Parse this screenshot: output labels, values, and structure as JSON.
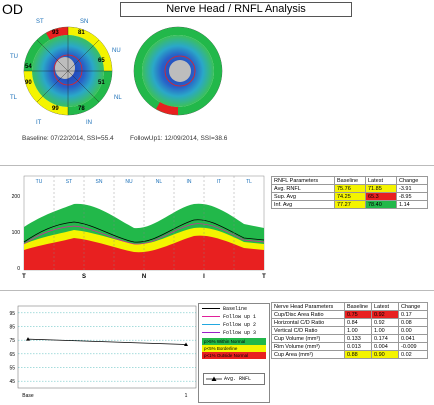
{
  "header": {
    "eye": "OD",
    "title": "Nerve Head / RNFL Analysis"
  },
  "maps": {
    "labels": [
      "ST",
      "SN",
      "TU",
      "NU",
      "TL",
      "NL",
      "IT",
      "IN"
    ],
    "left_values": [
      "93",
      "81",
      "54",
      "65",
      "90",
      "51",
      "99",
      "78"
    ],
    "baseline_caption": "Baseline: 07/22/2014, SSI=55.4",
    "followup_caption": "FollowUp1: 12/09/2014, SSI=38.6"
  },
  "rnfl_chart": {
    "segments": [
      "TU",
      "ST",
      "SN",
      "NU",
      "NL",
      "IN",
      "IT",
      "TL"
    ],
    "yticks": [
      "200",
      "100",
      "0"
    ],
    "xticks": [
      "T",
      "S",
      "N",
      "I",
      "T"
    ]
  },
  "rnfl_table": {
    "headers": [
      "RNFL Parameters",
      "Baseline",
      "Latest",
      "Change"
    ],
    "rows": [
      {
        "label": "Avg. RNFL",
        "baseline": "75.76",
        "latest": "71.85",
        "change": "-3.91",
        "bcolor": "#f4f400",
        "lcolor": "#f4f400"
      },
      {
        "label": "Sup. Avg",
        "baseline": "74.25",
        "latest": "65.3",
        "change": "-8.95",
        "bcolor": "#f4f400",
        "lcolor": "#e82020"
      },
      {
        "label": "Inf. Avg",
        "baseline": "77.27",
        "latest": "78.40",
        "change": "1.14",
        "bcolor": "#f4f400",
        "lcolor": "#22b84a"
      }
    ]
  },
  "trend_chart": {
    "yticks": [
      "95",
      "85",
      "75",
      "65",
      "55",
      "45"
    ],
    "xticks": [
      "Base",
      "1"
    ],
    "chart_data": {
      "type": "line",
      "x": [
        "Base",
        "1"
      ],
      "series": [
        {
          "name": "Avg. RNFL",
          "values": [
            75.76,
            71.85
          ]
        }
      ],
      "ylim": [
        40,
        100
      ]
    }
  },
  "legend": {
    "items": [
      {
        "label": "Baseline",
        "color": "#000000"
      },
      {
        "label": "Follow up 1",
        "color": "#e0209a"
      },
      {
        "label": "Follow up 2",
        "color": "#22a8e0"
      },
      {
        "label": "Follow up 3",
        "color": "#9a20c8"
      }
    ],
    "norm": [
      {
        "label": "p>5% Within Normal",
        "color": "#22b84a"
      },
      {
        "label": "p<5% Borderline",
        "color": "#f4f400"
      },
      {
        "label": "p<1% Outside Normal",
        "color": "#e82020"
      }
    ],
    "avg_label": "Avg. RNFL"
  },
  "nerve_table": {
    "headers": [
      "Nerve Head Parameters",
      "Baseline",
      "Latest",
      "Change"
    ],
    "rows": [
      {
        "label": "Cup/Disc Area Ratio",
        "baseline": "0.75",
        "latest": "0.92",
        "change": "0.17",
        "bcolor": "#e82020",
        "lcolor": "#e82020"
      },
      {
        "label": "Horizontal C/D Ratio",
        "baseline": "0.84",
        "latest": "0.92",
        "change": "0.08",
        "bcolor": "",
        "lcolor": ""
      },
      {
        "label": "Vertical C/D Ratio",
        "baseline": "1.00",
        "latest": "1.00",
        "change": "0.00",
        "bcolor": "",
        "lcolor": ""
      },
      {
        "label": "Cup Volume (mm³)",
        "baseline": "0.133",
        "latest": "0.174",
        "change": "0.041",
        "bcolor": "",
        "lcolor": ""
      },
      {
        "label": "Rim Volume (mm³)",
        "baseline": "0.013",
        "latest": "0.004",
        "change": "-0.009",
        "bcolor": "",
        "lcolor": ""
      },
      {
        "label": "Cup Area (mm²)",
        "baseline": "0.88",
        "latest": "0.90",
        "change": "0.02",
        "bcolor": "#f4f400",
        "lcolor": "#f4f400"
      }
    ]
  }
}
